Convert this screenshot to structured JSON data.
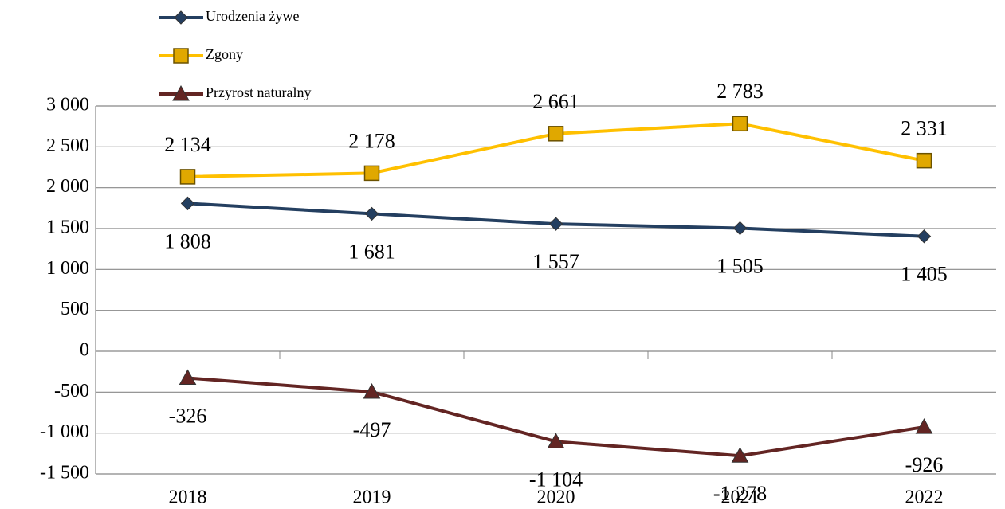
{
  "chart_data": {
    "type": "line",
    "categories": [
      "2018",
      "2019",
      "2020",
      "2021",
      "2022"
    ],
    "series": [
      {
        "name": "Urodzenia żywe",
        "color": "#243f60",
        "marker": "diamond",
        "values": [
          1808,
          1681,
          1557,
          1505,
          1405
        ],
        "value_labels": [
          "1 808",
          "1 681",
          "1 557",
          "1 505",
          "1 405"
        ]
      },
      {
        "name": "Zgony",
        "color": "#ffc000",
        "marker": "square",
        "values": [
          2134,
          2178,
          2661,
          2783,
          2331
        ],
        "value_labels": [
          "2 134",
          "2 178",
          "2 661",
          "2 783",
          "2 331"
        ]
      },
      {
        "name": "Przyrost naturalny",
        "color": "#632523",
        "marker": "triangle",
        "values": [
          -326,
          -497,
          -1104,
          -1278,
          -926
        ],
        "value_labels": [
          "-326",
          "-497",
          "-1 104",
          "-1 278",
          "-926"
        ]
      }
    ],
    "ylim": [
      -1500,
      3000
    ],
    "yticks": [
      {
        "value": -1500,
        "label": "-1 500"
      },
      {
        "value": -1000,
        "label": "-1 000"
      },
      -500,
      0,
      500,
      {
        "value": 1000,
        "label": "1 000"
      },
      {
        "value": 1500,
        "label": "1 500"
      },
      {
        "value": 2000,
        "label": "2 000"
      },
      {
        "value": 2500,
        "label": "2 500"
      },
      {
        "value": 3000,
        "label": "3 000"
      }
    ],
    "grid": true,
    "legend": "top-left"
  }
}
